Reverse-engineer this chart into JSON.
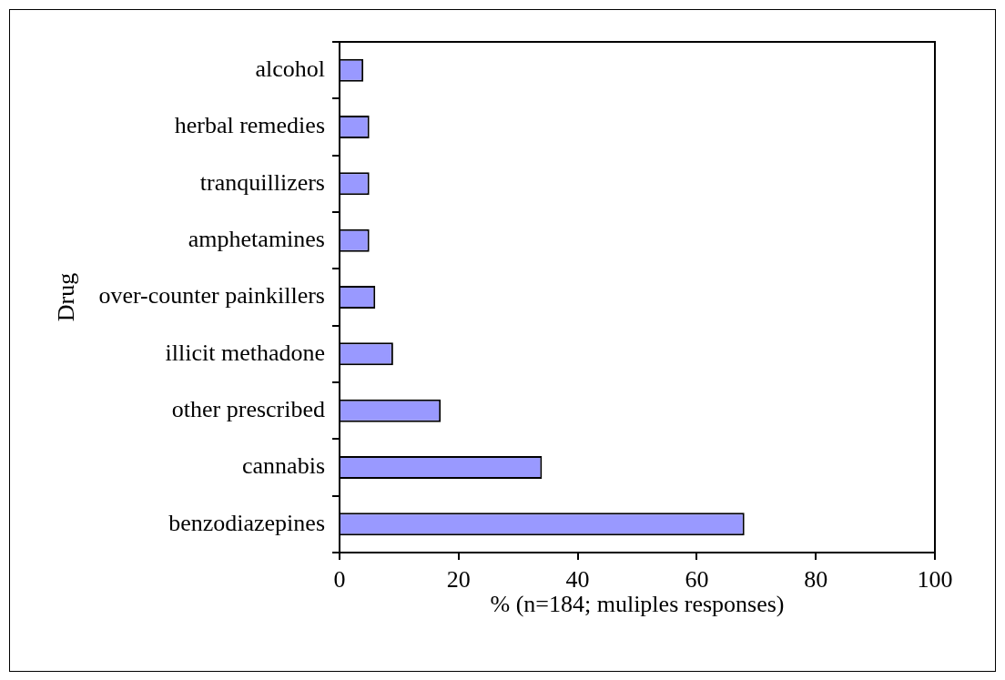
{
  "chart_data": {
    "type": "bar",
    "orientation": "horizontal",
    "categories": [
      "alcohol",
      "herbal remedies",
      "tranquillizers",
      "amphetamines",
      "over-counter painkillers",
      "illicit methadone",
      "other prescribed",
      "cannabis",
      "benzodiazepines"
    ],
    "values": [
      4,
      5,
      5,
      5,
      6,
      9,
      17,
      34,
      68
    ],
    "color": "#9999ff",
    "xlabel": "% (n=184; muliples responses)",
    "ylabel": "Drug",
    "xlim": [
      0,
      100
    ],
    "xticks": [
      0,
      20,
      40,
      60,
      80,
      100
    ],
    "grid": false,
    "legend": false
  }
}
